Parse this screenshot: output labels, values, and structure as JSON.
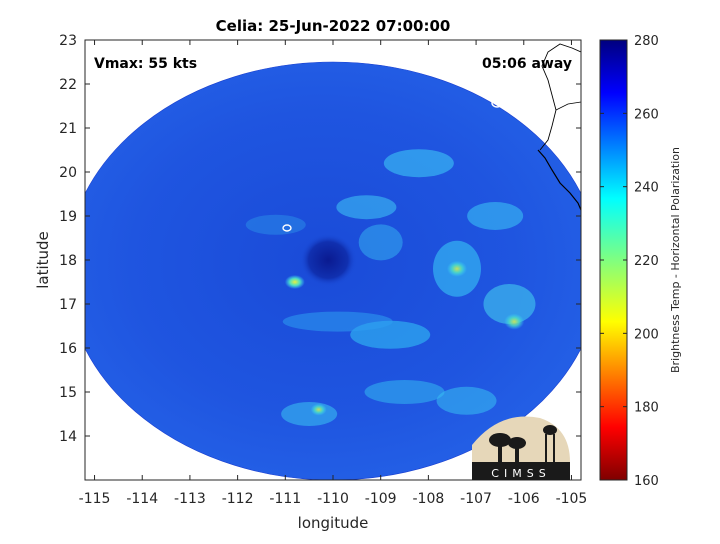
{
  "chart_data": {
    "type": "heatmap",
    "title": "Celia: 25-Jun-2022 07:00:00",
    "xlabel": "longitude",
    "ylabel": "latitude",
    "xlim": [
      -115.2,
      -104.8
    ],
    "ylim": [
      13.0,
      23.0
    ],
    "x_ticks": [
      -115,
      -114,
      -113,
      -112,
      -111,
      -110,
      -109,
      -108,
      -107,
      -106,
      -105
    ],
    "y_ticks": [
      14,
      15,
      16,
      17,
      18,
      19,
      20,
      21,
      22,
      23
    ],
    "annotations": {
      "vmax": "Vmax: 55 kts",
      "time_away": "05:06 away"
    },
    "colorbar": {
      "label": "Brightness Temp - Horizontal Polarization",
      "min": 160,
      "max": 280,
      "ticks": [
        160,
        180,
        200,
        220,
        240,
        260,
        280
      ],
      "colormap": "jet"
    },
    "storm_center": {
      "lon": -110.1,
      "lat": 18.0
    },
    "swath": {
      "center_lon": -110.0,
      "center_lat": 17.75,
      "radius_lon": 5.6,
      "radius_lat": 4.75
    },
    "grid": false
  },
  "logo": {
    "text": "CIMSS"
  }
}
